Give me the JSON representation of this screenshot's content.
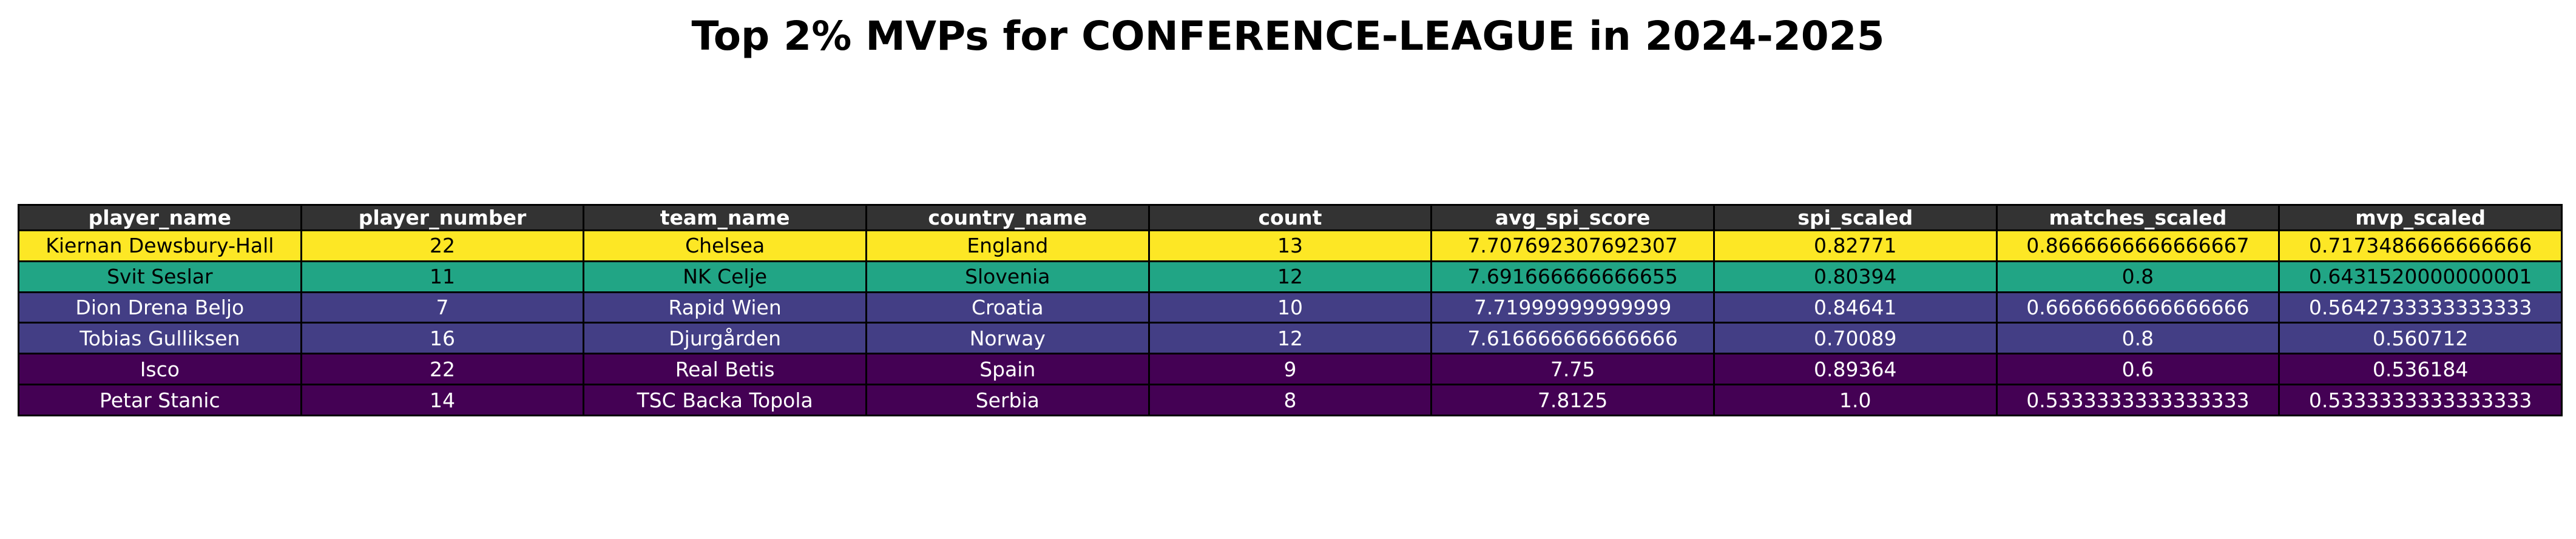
{
  "chart_data": {
    "type": "table",
    "title": "Top 2% MVPs for CONFERENCE-LEAGUE in 2024-2025",
    "columns": [
      "player_name",
      "player_number",
      "team_name",
      "country_name",
      "count",
      "avg_spi_score",
      "spi_scaled",
      "matches_scaled",
      "mvp_scaled"
    ],
    "header_color": "#333333",
    "header_text_color": "#ffffff",
    "rows": [
      {
        "cells": [
          "Kiernan Dewsbury-Hall",
          "22",
          "Chelsea",
          "England",
          "13",
          "7.707692307692307",
          "0.82771",
          "0.8666666666666667",
          "0.7173486666666666"
        ],
        "bg": "#fde725",
        "fg": "#000000"
      },
      {
        "cells": [
          "Svit Seslar",
          "11",
          "NK Celje",
          "Slovenia",
          "12",
          "7.691666666666655",
          "0.80394",
          "0.8",
          "0.6431520000000001"
        ],
        "bg": "#21a585",
        "fg": "#000000"
      },
      {
        "cells": [
          "Dion Drena Beljo",
          "7",
          "Rapid Wien",
          "Croatia",
          "10",
          "7.71999999999999",
          "0.84641",
          "0.6666666666666666",
          "0.5642733333333333"
        ],
        "bg": "#433e85",
        "fg": "#ffffff"
      },
      {
        "cells": [
          "Tobias Gulliksen",
          "16",
          "Djurgården",
          "Norway",
          "12",
          "7.616666666666666",
          "0.70089",
          "0.8",
          "0.560712"
        ],
        "bg": "#433e85",
        "fg": "#ffffff"
      },
      {
        "cells": [
          "Isco",
          "22",
          "Real Betis",
          "Spain",
          "9",
          "7.75",
          "0.89364",
          "0.6",
          "0.536184"
        ],
        "bg": "#440154",
        "fg": "#ffffff"
      },
      {
        "cells": [
          "Petar Stanic",
          "14",
          "TSC Backa Topola",
          "Serbia",
          "8",
          "7.8125",
          "1.0",
          "0.5333333333333333",
          "0.5333333333333333"
        ],
        "bg": "#440154",
        "fg": "#ffffff"
      }
    ]
  }
}
